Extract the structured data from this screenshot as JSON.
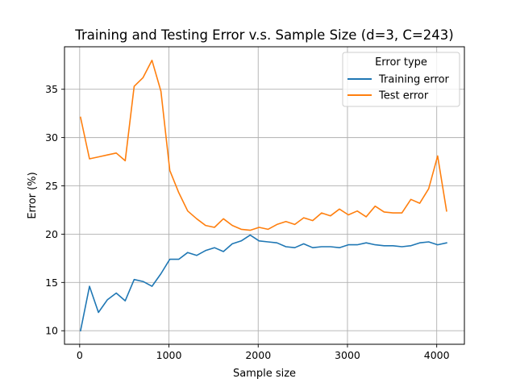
{
  "chart_data": {
    "type": "line",
    "title": "Training and Testing Error v.s. Sample Size (d=3, C=243)",
    "xlabel": "Sample size",
    "ylabel": "Error (%)",
    "xlim": [
      -170,
      4310
    ],
    "ylim": [
      8.6,
      39.4
    ],
    "xticks": [
      0,
      1000,
      2000,
      3000,
      4000
    ],
    "yticks": [
      10,
      15,
      20,
      25,
      30,
      35
    ],
    "grid": true,
    "legend": {
      "title": "Error type",
      "placement": "top-right"
    },
    "x": [
      10,
      110,
      210,
      310,
      410,
      510,
      610,
      710,
      810,
      910,
      1010,
      1110,
      1210,
      1310,
      1410,
      1510,
      1610,
      1710,
      1810,
      1910,
      2010,
      2110,
      2210,
      2310,
      2410,
      2510,
      2610,
      2710,
      2810,
      2910,
      3010,
      3110,
      3210,
      3310,
      3410,
      3510,
      3610,
      3710,
      3810,
      3910,
      4010,
      4110
    ],
    "series": [
      {
        "name": "Training error",
        "color": "#1f77b4",
        "values": [
          10.0,
          14.6,
          11.9,
          13.2,
          13.9,
          13.1,
          15.3,
          15.1,
          14.6,
          15.9,
          17.4,
          17.4,
          18.1,
          17.8,
          18.3,
          18.6,
          18.2,
          19.0,
          19.3,
          19.9,
          19.3,
          19.2,
          19.1,
          18.7,
          18.6,
          19.0,
          18.6,
          18.7,
          18.7,
          18.6,
          18.9,
          18.9,
          19.1,
          18.9,
          18.8,
          18.8,
          18.7,
          18.8,
          19.1,
          19.2,
          18.9,
          19.1
        ]
      },
      {
        "name": "Test error",
        "color": "#ff7f0e",
        "values": [
          32.1,
          27.8,
          28.0,
          28.2,
          28.4,
          27.6,
          35.3,
          36.2,
          38.0,
          34.8,
          26.6,
          24.3,
          22.4,
          21.6,
          20.9,
          20.7,
          21.6,
          20.9,
          20.5,
          20.4,
          20.7,
          20.5,
          21.0,
          21.3,
          21.0,
          21.7,
          21.4,
          22.2,
          21.9,
          22.6,
          22.0,
          22.4,
          21.8,
          22.9,
          22.3,
          22.2,
          22.2,
          23.6,
          23.2,
          24.7,
          28.1,
          22.4
        ]
      }
    ]
  }
}
